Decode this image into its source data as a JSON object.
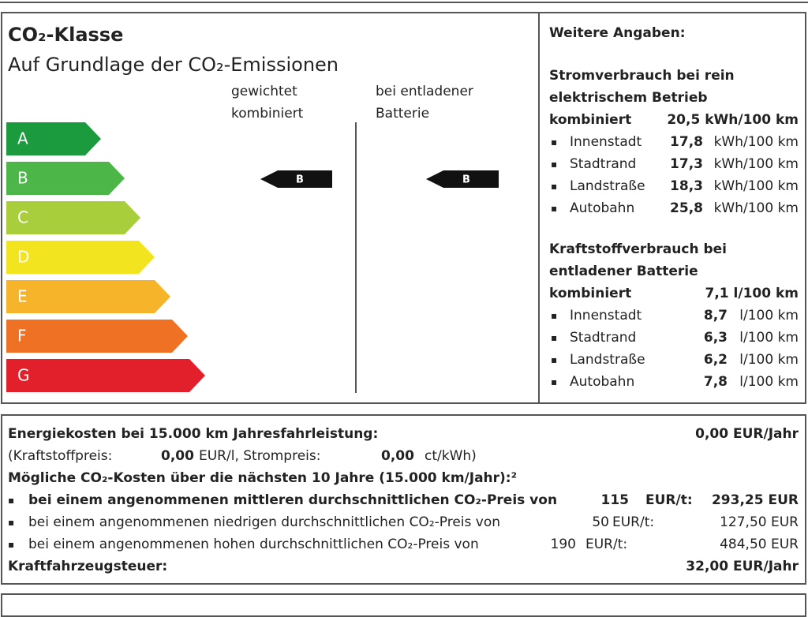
{
  "label": {
    "title": "CO₂-Klasse",
    "subtitle": "Auf Grundlage der CO₂-Emissionen",
    "column1": [
      "gewichtet",
      "kombiniert"
    ],
    "column2": [
      "bei entladener",
      "Batterie"
    ],
    "classes": [
      "A",
      "B",
      "C",
      "D",
      "E",
      "F",
      "G"
    ],
    "marker1": "B",
    "marker2": "B"
  },
  "details": {
    "heading": "Weitere Angaben:",
    "electric": {
      "title": [
        "Stromverbrauch bei rein",
        "elektrischem Betrieb"
      ],
      "combined_label": "kombiniert",
      "combined_value": "20,5 kWh/100 km",
      "rows": [
        {
          "label": "Innenstadt",
          "value": "17,8",
          "unit": "kWh/100 km"
        },
        {
          "label": "Stadtrand",
          "value": "17,3",
          "unit": "kWh/100 km"
        },
        {
          "label": "Landstraße",
          "value": "18,3",
          "unit": "kWh/100 km"
        },
        {
          "label": "Autobahn",
          "value": "25,8",
          "unit": "kWh/100 km"
        }
      ]
    },
    "fuel": {
      "title": [
        "Kraftstoffverbrauch bei",
        "entladener Batterie"
      ],
      "combined_label": "kombiniert",
      "combined_value": "7,1 l/100 km",
      "rows": [
        {
          "label": "Innenstadt",
          "value": "8,7",
          "unit": "l/100 km"
        },
        {
          "label": "Stadtrand",
          "value": "6,3",
          "unit": "l/100 km"
        },
        {
          "label": "Landstraße",
          "value": "6,2",
          "unit": "l/100 km"
        },
        {
          "label": "Autobahn",
          "value": "7,8",
          "unit": "l/100 km"
        }
      ]
    }
  },
  "costs": {
    "energy_label": "Energiekosten bei 15.000 km Jahresfahrleistung:",
    "energy_value": "0,00 EUR/Jahr",
    "fuel_price_label": "(Kraftstoffpreis:",
    "fuel_price_value": "0,00",
    "fuel_price_unit": "EUR/l, Strompreis:",
    "power_price_value": "0,00",
    "power_price_unit": "ct/kWh)",
    "co2_heading": "Mögliche CO₂-Kosten über die nächsten 10 Jahre (15.000 km/Jahr):²",
    "co2_rows": [
      {
        "text": "bei einem angenommenen mittleren durchschnittlichen CO₂-Preis von",
        "price": "115",
        "unit": "EUR/t:",
        "total": "293,25 EUR"
      },
      {
        "text": "bei einem angenommenen niedrigen durchschnittlichen CO₂-Preis von",
        "price": "50",
        "unit": "EUR/t:",
        "total": "127,50 EUR"
      },
      {
        "text": "bei einem angenommenen hohen durchschnittlichen CO₂-Preis von",
        "price": "190",
        "unit": "EUR/t:",
        "total": "484,50 EUR"
      }
    ],
    "tax_label": "Kraftfahrzeugsteuer:",
    "tax_value": "32,00 EUR/Jahr"
  }
}
